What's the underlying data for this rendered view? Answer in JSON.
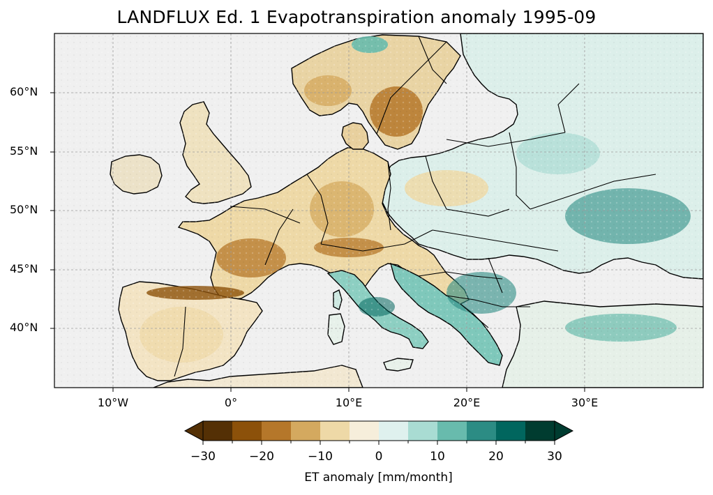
{
  "title": "LANDFLUX Ed. 1 Evapotranspiration anomaly 1995-09",
  "map": {
    "extent": {
      "lon": [
        -15,
        40
      ],
      "lat": [
        35,
        65
      ]
    },
    "latitude_labels": [
      "60°N",
      "55°N",
      "50°N",
      "45°N",
      "40°N"
    ],
    "longitude_labels": [
      "10°W",
      "0°",
      "10°E",
      "20°E",
      "30°E"
    ],
    "gridlines": true,
    "background_color": "#f0f0f0",
    "coastline_color": "#000000"
  },
  "colorbar": {
    "label": "ET anomaly [mm/month]",
    "tick_labels": [
      "−30",
      "−20",
      "−10",
      "0",
      "10",
      "20",
      "30"
    ],
    "levels": [
      -30,
      -25,
      -20,
      -15,
      -10,
      -5,
      0,
      5,
      10,
      15,
      20,
      25,
      30
    ],
    "colors": [
      "#543005",
      "#8c510a",
      "#b5772a",
      "#d4a95f",
      "#eed9a7",
      "#f6eedb",
      "#dff1ee",
      "#a9dcd3",
      "#68bbad",
      "#2c8c84",
      "#01665e",
      "#003c30"
    ],
    "extend": "both"
  }
}
